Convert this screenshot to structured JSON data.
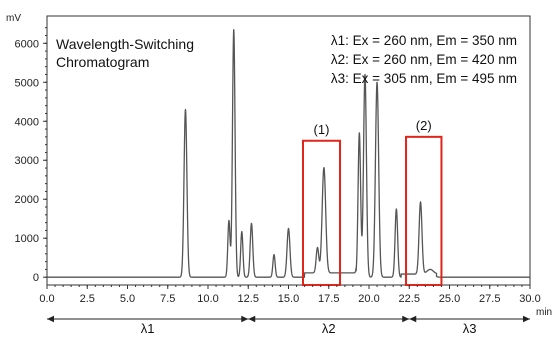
{
  "chart_data": {
    "type": "line",
    "title": "Wavelength-Switching\nChromatogram",
    "title_lines": [
      "Wavelength-Switching",
      "Chromatogram"
    ],
    "ylabel": "mV",
    "xlabel": "min",
    "xlim": [
      0.0,
      30.0
    ],
    "ylim": [
      -200,
      6700
    ],
    "x_ticks": [
      0.0,
      2.5,
      5.0,
      7.5,
      10.0,
      12.5,
      15.0,
      17.5,
      20.0,
      22.5,
      25.0,
      27.5,
      30.0
    ],
    "x_tick_labels": [
      "0.0",
      "2.5",
      "5.0",
      "7.5",
      "10.0",
      "12.5",
      "15.0",
      "17.5",
      "20.0",
      "22.5",
      "25.0",
      "27.5",
      "30.0"
    ],
    "y_ticks": [
      0,
      1000,
      2000,
      3000,
      4000,
      5000,
      6000
    ],
    "y_tick_labels": [
      "0",
      "1000",
      "2000",
      "3000",
      "4000",
      "5000",
      "6000"
    ],
    "grid": false,
    "conditions": [
      "λ1: Ex = 260 nm, Em = 350 nm",
      "λ2: Ex = 260 nm, Em = 420 nm",
      "λ3: Ex = 305 nm, Em = 495 nm"
    ],
    "segments": [
      {
        "label": "λ1",
        "start": 0.0,
        "end": 12.5
      },
      {
        "label": "λ2",
        "start": 12.5,
        "end": 22.5
      },
      {
        "label": "λ3",
        "start": 22.5,
        "end": 30.0
      }
    ],
    "highlights": [
      {
        "label": "(1)",
        "x_start": 15.9,
        "x_end": 18.2,
        "y_top": 3500
      },
      {
        "label": "(2)",
        "x_start": 22.3,
        "x_end": 24.5,
        "y_top": 3600
      }
    ],
    "peaks": [
      {
        "x": 8.6,
        "height": 4300,
        "width": 0.09
      },
      {
        "x": 11.3,
        "height": 1450,
        "width": 0.07
      },
      {
        "x": 11.6,
        "height": 6350,
        "width": 0.08
      },
      {
        "x": 12.1,
        "height": 1170,
        "width": 0.07
      },
      {
        "x": 12.7,
        "height": 1380,
        "width": 0.08
      },
      {
        "x": 14.1,
        "height": 580,
        "width": 0.07
      },
      {
        "x": 15.0,
        "height": 1250,
        "width": 0.09
      },
      {
        "x": 16.8,
        "height": 650,
        "width": 0.08
      },
      {
        "x": 17.2,
        "height": 2700,
        "width": 0.11
      },
      {
        "x": 19.4,
        "height": 3700,
        "width": 0.08
      },
      {
        "x": 19.75,
        "height": 5200,
        "width": 0.09
      },
      {
        "x": 20.5,
        "height": 5000,
        "width": 0.1
      },
      {
        "x": 21.7,
        "height": 1750,
        "width": 0.08
      },
      {
        "x": 23.2,
        "height": 1850,
        "width": 0.09
      },
      {
        "x": 23.8,
        "height": 120,
        "width": 0.2
      }
    ],
    "baseline": [
      {
        "start": 0.0,
        "end": 16.0,
        "level": 0
      },
      {
        "start": 16.0,
        "end": 19.2,
        "level": 110
      },
      {
        "start": 19.2,
        "end": 22.0,
        "level": 0
      },
      {
        "start": 22.0,
        "end": 24.2,
        "level": 80
      },
      {
        "start": 24.2,
        "end": 30.0,
        "level": 0
      }
    ]
  }
}
